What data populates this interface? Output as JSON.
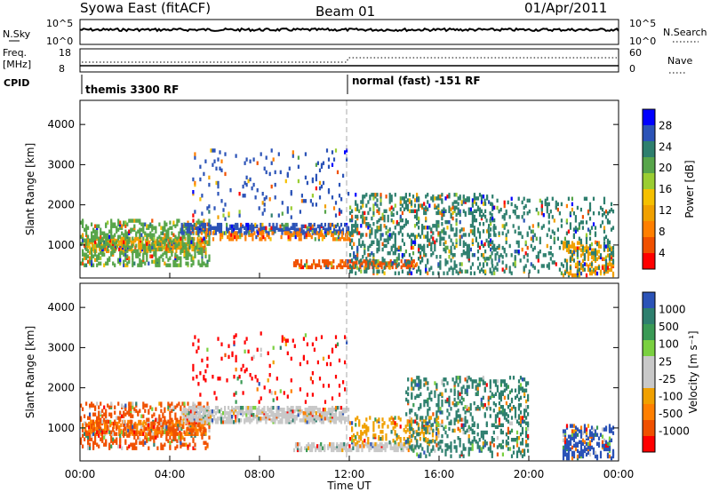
{
  "header": {
    "station": "Syowa East (fitACF)",
    "beam": "Beam 01",
    "date": "01/Apr/2011"
  },
  "params": {
    "nsky_label": "N.Sky",
    "nsky_ticks": [
      "10^5",
      "10^0"
    ],
    "nsearch_label": "N.Search",
    "nsearch_ticks": [
      "10^5",
      "10^0"
    ],
    "freq_label": "Freq.",
    "freq_unit": "[MHz]",
    "freq_ticks": [
      "18",
      "8"
    ],
    "nave_label": "Nave",
    "nave_ticks": [
      "60",
      "0"
    ],
    "cpid_label": "CPID",
    "cpid_segments": [
      {
        "label": "themis 3300 RF",
        "start_hour": 0
      },
      {
        "label": "normal (fast) -151 RF",
        "start_hour": 12
      }
    ]
  },
  "chart_data": [
    {
      "type": "heatmap",
      "name": "power",
      "xlabel": "Time UT",
      "ylabel": "Slant Range [km]",
      "x_ticks": [
        "00:00",
        "04:00",
        "08:00",
        "12:00",
        "16:00",
        "20:00",
        "00:00"
      ],
      "x_range_hours": [
        0,
        24
      ],
      "y_ticks": [
        1000,
        2000,
        3000,
        4000
      ],
      "y_range_km": [
        180,
        4600
      ],
      "colorbar": {
        "label": "Power [dB]",
        "ticks": [
          "4",
          "8",
          "12",
          "16",
          "20",
          "24",
          "28"
        ],
        "colors": [
          "#0000ff",
          "#2b53b7",
          "#2e7f6e",
          "#57a54a",
          "#9acd32",
          "#f5c000",
          "#f0a000",
          "#ff7f00",
          "#f05000",
          "#ff0000"
        ]
      },
      "bands": [
        {
          "t0": 0.2,
          "t1": 5.6,
          "r0": 850,
          "r1": 1200,
          "color": "#f0a000",
          "density": 0.55
        },
        {
          "t0": 0.0,
          "t1": 5.8,
          "r0": 500,
          "r1": 1650,
          "color": "#57a54a",
          "density": 0.3
        },
        {
          "t0": 4.5,
          "t1": 12.0,
          "r0": 1300,
          "r1": 1550,
          "color": "#2b53b7",
          "density": 0.5
        },
        {
          "t0": 5.5,
          "t1": 12.2,
          "r0": 1150,
          "r1": 1350,
          "color": "#ff7f00",
          "density": 0.35
        },
        {
          "t0": 9.5,
          "t1": 15.0,
          "r0": 450,
          "r1": 650,
          "color": "#f05000",
          "density": 0.55
        },
        {
          "t0": 12.0,
          "t1": 18.5,
          "r0": 300,
          "r1": 2300,
          "color": "#2e7f6e",
          "density": 0.2
        },
        {
          "t0": 5.0,
          "t1": 12.0,
          "r0": 1650,
          "r1": 3400,
          "color": "#2b53b7",
          "density": 0.05
        },
        {
          "t0": 21.5,
          "t1": 23.8,
          "r0": 250,
          "r1": 1100,
          "color": "#f0a000",
          "density": 0.3
        },
        {
          "t0": 18.0,
          "t1": 23.8,
          "r0": 300,
          "r1": 2200,
          "color": "#2e7f6e",
          "density": 0.12
        }
      ]
    },
    {
      "type": "heatmap",
      "name": "velocity",
      "xlabel": "Time UT",
      "ylabel": "Slant Range [km]",
      "x_ticks": [
        "00:00",
        "04:00",
        "08:00",
        "12:00",
        "16:00",
        "20:00",
        "00:00"
      ],
      "x_range_hours": [
        0,
        24
      ],
      "y_ticks": [
        1000,
        2000,
        3000,
        4000
      ],
      "y_range_km": [
        180,
        4600
      ],
      "colorbar": {
        "label": "Velocity [m s⁻¹]",
        "ticks": [
          "1000",
          "500",
          "100",
          "25",
          "-25",
          "-100",
          "-500",
          "-1000"
        ],
        "colors": [
          "#2b53b7",
          "#2e7f6e",
          "#3a9a55",
          "#7ad040",
          "#c8c8c8",
          "#c8c8c8",
          "#f0a000",
          "#ff7f00",
          "#f05000",
          "#ff0000"
        ]
      },
      "bands": [
        {
          "t0": 0.2,
          "t1": 5.6,
          "r0": 850,
          "r1": 1200,
          "color": "#ff7f00",
          "density": 0.5
        },
        {
          "t0": 0.0,
          "t1": 5.8,
          "r0": 500,
          "r1": 1650,
          "color": "#f05000",
          "density": 0.25
        },
        {
          "t0": 4.5,
          "t1": 12.0,
          "r0": 1150,
          "r1": 1550,
          "color": "#c8c8c8",
          "density": 0.55
        },
        {
          "t0": 9.5,
          "t1": 15.0,
          "r0": 450,
          "r1": 650,
          "color": "#c8c8c8",
          "density": 0.5
        },
        {
          "t0": 12.0,
          "t1": 16.0,
          "r0": 600,
          "r1": 1300,
          "color": "#f0a000",
          "density": 0.2
        },
        {
          "t0": 14.5,
          "t1": 20.0,
          "r0": 300,
          "r1": 2300,
          "color": "#2e7f6e",
          "density": 0.2
        },
        {
          "t0": 5.0,
          "t1": 12.0,
          "r0": 1650,
          "r1": 3400,
          "color": "#ff0000",
          "density": 0.05
        },
        {
          "t0": 21.5,
          "t1": 23.8,
          "r0": 250,
          "r1": 1100,
          "color": "#2b53b7",
          "density": 0.35
        }
      ]
    }
  ]
}
